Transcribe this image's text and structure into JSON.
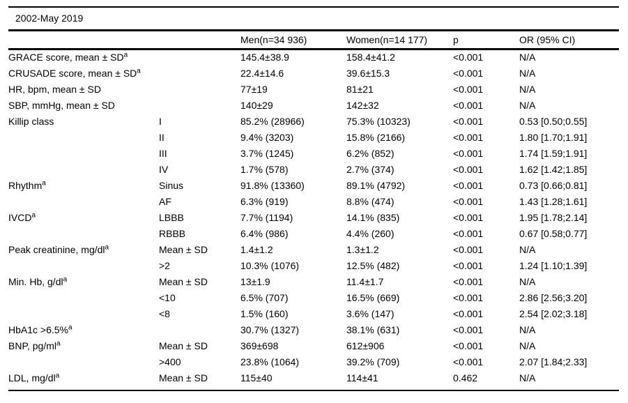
{
  "colors": {
    "background": "#ffffff",
    "text": "#000000",
    "rule": "#000000"
  },
  "table": {
    "title": "2002-May 2019",
    "header": {
      "label": "",
      "sublabel": "",
      "men": "Men(n=34 936)",
      "women": "Women(n=14 177)",
      "p": "p",
      "or": "OR (95% CI)"
    },
    "rows": [
      {
        "label": "GRACE score, mean ± SD",
        "sup": "a",
        "sub": "",
        "men": "145.4±38.9",
        "women": "158.4±41.2",
        "p": "<0.001",
        "or": "N/A"
      },
      {
        "label": "CRUSADE score, mean ± SD",
        "sup": "a",
        "sub": "",
        "men": "22.4±14.6",
        "women": "39.6±15.3",
        "p": "<0.001",
        "or": "N/A"
      },
      {
        "label": "HR, bpm, mean ± SD",
        "sup": "",
        "sub": "",
        "men": "77±19",
        "women": "81±21",
        "p": "<0.001",
        "or": "N/A"
      },
      {
        "label": "SBP, mmHg, mean ± SD",
        "sup": "",
        "sub": "",
        "men": "140±29",
        "women": "142±32",
        "p": "<0.001",
        "or": "N/A"
      },
      {
        "label": "Killip class",
        "sup": "",
        "sub": "I",
        "men": "85.2% (28966)",
        "women": "75.3% (10323)",
        "p": "<0.001",
        "or": "0.53 [0.50;0.55]"
      },
      {
        "label": "",
        "sup": "",
        "sub": "II",
        "men": "9.4% (3203)",
        "women": "15.8% (2166)",
        "p": "<0.001",
        "or": "1.80 [1.70;1.91]"
      },
      {
        "label": "",
        "sup": "",
        "sub": "III",
        "men": "3.7% (1245)",
        "women": "6.2% (852)",
        "p": "<0.001",
        "or": "1.74 [1.59;1.91]"
      },
      {
        "label": "",
        "sup": "",
        "sub": "IV",
        "men": "1.7% (578)",
        "women": "2.7% (374)",
        "p": "<0.001",
        "or": "1.62 [1.42;1.85]"
      },
      {
        "label": "Rhythm",
        "sup": "a",
        "sub": "Sinus",
        "men": "91.8% (13360)",
        "women": "89.1% (4792)",
        "p": "<0.001",
        "or": "0.73 [0.66;0.81]"
      },
      {
        "label": "",
        "sup": "",
        "sub": "AF",
        "men": "6.3% (919)",
        "women": "8.8% (474)",
        "p": "<0.001",
        "or": "1.43 [1.28;1.61]"
      },
      {
        "label": "IVCD",
        "sup": "a",
        "sub": "LBBB",
        "men": "7.7% (1194)",
        "women": "14.1% (835)",
        "p": "<0.001",
        "or": "1.95 [1.78;2.14]"
      },
      {
        "label": "",
        "sup": "",
        "sub": "RBBB",
        "men": "6.4% (986)",
        "women": "4.4% (260)",
        "p": "<0.001",
        "or": "0.67 [0.58;0.77]"
      },
      {
        "label": "Peak creatinine, mg/dl",
        "sup": "a",
        "sub": "Mean ± SD",
        "men": "1.4±1.2",
        "women": "1.3±1.2",
        "p": "<0.001",
        "or": "N/A"
      },
      {
        "label": "",
        "sup": "",
        "sub": ">2",
        "men": "10.3% (1076)",
        "women": "12.5% (482)",
        "p": "<0.001",
        "or": "1.24 [1.10;1.39]"
      },
      {
        "label": "Min. Hb, g/dl",
        "sup": "a",
        "sub": "Mean ± SD",
        "men": "13±1.9",
        "women": "11.4±1.7",
        "p": "<0.001",
        "or": "N/A"
      },
      {
        "label": "",
        "sup": "",
        "sub": "<10",
        "men": "6.5% (707)",
        "women": "16.5% (669)",
        "p": "<0.001",
        "or": "2.86 [2.56;3.20]"
      },
      {
        "label": "",
        "sup": "",
        "sub": "<8",
        "men": "1.5% (160)",
        "women": "3.6% (147)",
        "p": "<0.001",
        "or": "2.54 [2.02;3.18]"
      },
      {
        "label": "HbA1c >6.5%",
        "sup": "a",
        "sub": "",
        "men": "30.7% (1327)",
        "women": "38.1% (631)",
        "p": "<0.001",
        "or": "N/A"
      },
      {
        "label": "BNP, pg/ml",
        "sup": "a",
        "sub": "Mean ± SD",
        "men": "369±698",
        "women": "612±906",
        "p": "<0.001",
        "or": "N/A"
      },
      {
        "label": "",
        "sup": "",
        "sub": ">400",
        "men": "23.8% (1064)",
        "women": "39.2% (709)",
        "p": "<0.001",
        "or": "2.07 [1.84;2.33]"
      },
      {
        "label": "LDL, mg/dl",
        "sup": "a",
        "sub": "Mean ± SD",
        "men": "115±40",
        "women": "114±41",
        "p": "0.462",
        "or": "N/A"
      }
    ]
  }
}
